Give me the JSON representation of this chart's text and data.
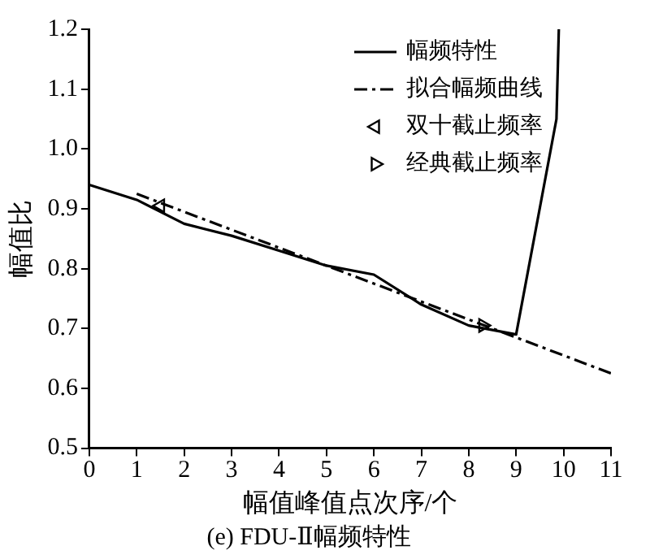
{
  "chart_data": {
    "type": "line",
    "title": "(e) FDU-Ⅱ幅频特性",
    "xlabel": "幅值峰值点次序/个",
    "ylabel": "幅值比",
    "xlim": [
      0,
      11
    ],
    "xticks": [
      0,
      1,
      2,
      3,
      4,
      5,
      6,
      7,
      8,
      9,
      10,
      11
    ],
    "ylim": [
      0.5,
      1.2
    ],
    "yticks": [
      {
        "value": 0.5,
        "label": "0.5"
      },
      {
        "value": 0.6,
        "label": "0.6"
      },
      {
        "value": 0.7,
        "label": "0.7"
      },
      {
        "value": 0.8,
        "label": "0.8"
      },
      {
        "value": 0.9,
        "label": "0.9"
      },
      {
        "value": 1,
        "label": "1.0"
      },
      {
        "value": 1.1,
        "label": "1.1"
      },
      {
        "value": 1.2,
        "label": "1.2"
      }
    ],
    "grid": false,
    "legend": "top right",
    "series": [
      {
        "name": "幅频特性",
        "color": "#000000",
        "line_style": "solid",
        "marker": "none",
        "x": [
          0,
          1,
          2,
          3,
          4,
          5,
          6,
          7,
          8,
          9,
          9.85,
          9.9
        ],
        "values": [
          0.94,
          0.915,
          0.875,
          0.855,
          0.83,
          0.805,
          0.79,
          0.74,
          0.705,
          0.69,
          1.05,
          1.2
        ]
      },
      {
        "name": "拟合幅频曲线",
        "color": "#000000",
        "line_style": "dashdot",
        "marker": "none",
        "x": [
          1,
          11
        ],
        "values": [
          0.925,
          0.625
        ]
      },
      {
        "name": "双十截止频率",
        "type": "scatter",
        "color": "#000000",
        "marker": "triangle-left",
        "x": [
          1.5
        ],
        "values": [
          0.905
        ]
      },
      {
        "name": "经典截止频率",
        "type": "scatter",
        "color": "#000000",
        "marker": "triangle-right",
        "x": [
          8.3
        ],
        "values": [
          0.705
        ]
      }
    ]
  }
}
